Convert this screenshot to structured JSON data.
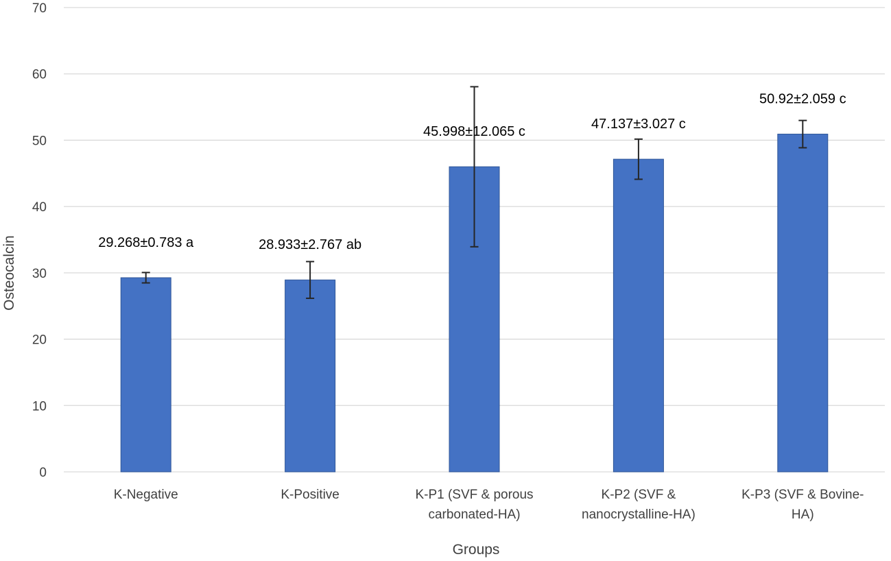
{
  "chart_data": {
    "type": "bar",
    "title": "",
    "xlabel": "Groups",
    "ylabel": "Osteocalcin",
    "ylim": [
      0,
      70
    ],
    "ytick_step": 10,
    "grid": true,
    "categories": [
      [
        "K-Negative"
      ],
      [
        "K-Positive"
      ],
      [
        "K-P1 (SVF & porous",
        "carbonated-HA)"
      ],
      [
        "K-P2 (SVF &",
        "nanocrystalline-HA)"
      ],
      [
        "K-P3 (SVF & Bovine-",
        "HA)"
      ]
    ],
    "series": [
      {
        "values": [
          29.268,
          28.933,
          45.998,
          47.137,
          50.92
        ],
        "errors": [
          0.783,
          2.767,
          12.065,
          3.027,
          2.059
        ],
        "data_labels": [
          "29.268±0.783 a",
          "28.933±2.767 ab",
          "45.998±12.065 c",
          "47.137±3.027 c",
          "50.92±2.059 c"
        ]
      }
    ],
    "colors": {
      "bar": "#4472C4",
      "bar_edge": "#2F5597",
      "grid": "#D9D9D9",
      "error_bar": "#262626"
    }
  }
}
